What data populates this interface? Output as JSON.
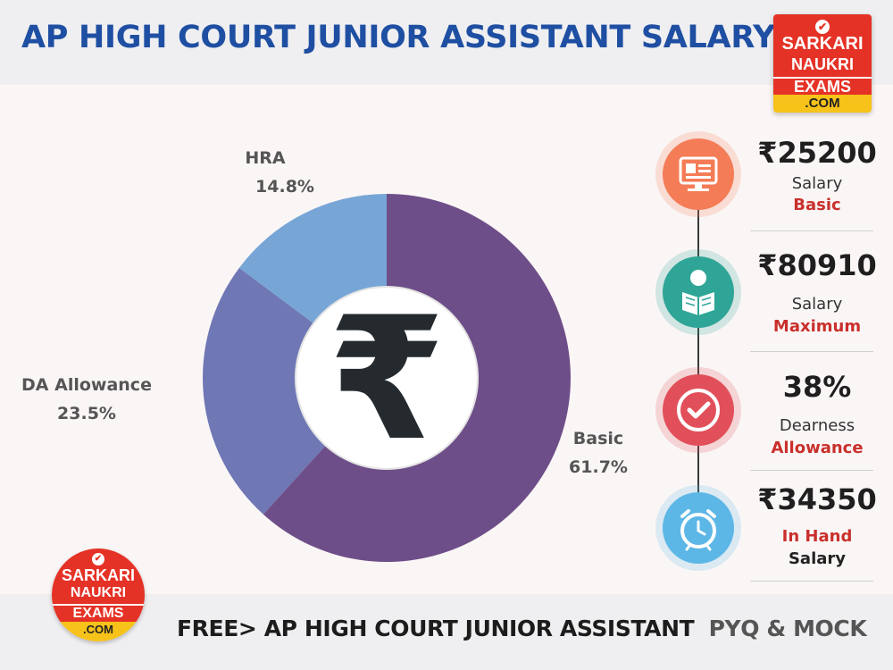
{
  "header": {
    "title": "AP HIGH COURT JUNIOR ASSISTANT SALARY"
  },
  "logo": {
    "line1": "SARKARI",
    "line2": "NAUKRI",
    "line3": "EXAMS",
    "line4": ".COM"
  },
  "chart_data": {
    "type": "pie",
    "style": "donut",
    "center_icon": "rupee-symbol",
    "center_symbol": "₹",
    "slices": [
      {
        "label": "Basic",
        "value": 61.7,
        "display": "61.7%",
        "color": "#6e4e88"
      },
      {
        "label": "DA Allowance",
        "value": 23.5,
        "display": "23.5%",
        "color": "#6f77b5"
      },
      {
        "label": "HRA",
        "value": 14.8,
        "display": "14.8%",
        "color": "#77a6d6"
      }
    ]
  },
  "info": [
    {
      "value": "₹25200",
      "line1": "Salary",
      "line2": "Basic",
      "icon": "monitor-id-icon",
      "color": "#f47c57"
    },
    {
      "value": "₹80910",
      "line1": "Salary",
      "line2": "Maximum",
      "icon": "reading-person-icon",
      "color": "#2fa597"
    },
    {
      "value": "38%",
      "line1": "Dearness",
      "line2": "Allowance",
      "icon": "checkmark-icon",
      "color": "#e1505a"
    },
    {
      "value": "₹34350",
      "line1": "In Hand",
      "line2": "Salary",
      "icon": "alarm-clock-icon",
      "color": "#5cb7e6"
    }
  ],
  "footer": {
    "text_main": "FREE> AP HIGH COURT JUNIOR ASSISTANT",
    "text_secondary": "PYQ & MOCK"
  }
}
